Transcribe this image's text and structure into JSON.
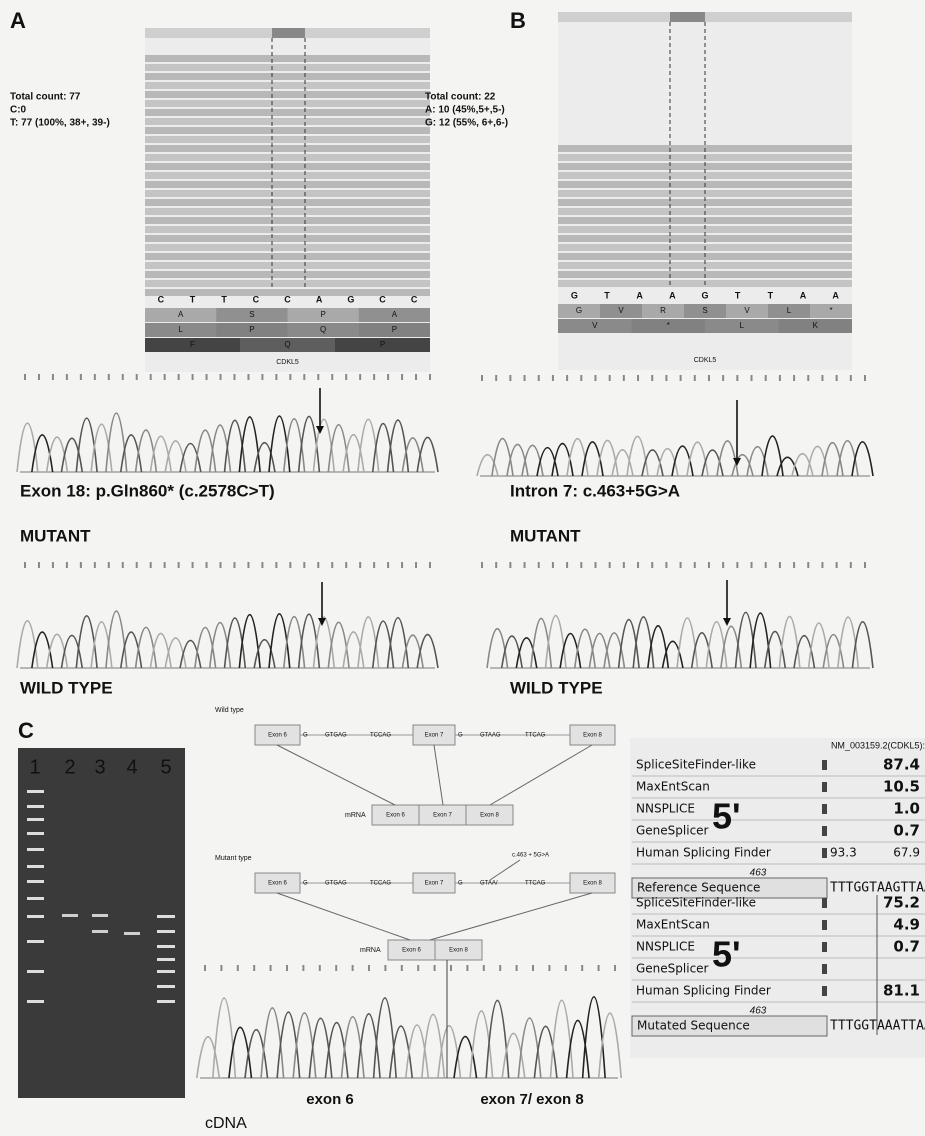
{
  "panel_a": {
    "label": "A",
    "count_lines": [
      "Total count: 77",
      "C:0",
      "T: 77 (100%, 38+, 39-)"
    ],
    "reference_bases": [
      "C",
      "T",
      "T",
      "C",
      "C",
      "A",
      "G",
      "C",
      "C"
    ],
    "protein_rows": [
      [
        "A",
        "S",
        "P",
        "A"
      ],
      [
        "L",
        "P",
        "Q",
        "P"
      ],
      [
        "F",
        "Q",
        "P"
      ]
    ],
    "gene": "CDKL5",
    "variant": "Exon 18: p.Gln860* (c.2578C>T)",
    "mutant_label": "MUTANT",
    "wildtype_label": "WILD TYPE"
  },
  "panel_b": {
    "label": "B",
    "count_lines": [
      "Total count: 22",
      "A: 10 (45%,5+,5-)",
      "G: 12 (55%, 6+,6-)"
    ],
    "reference_bases": [
      "G",
      "T",
      "A",
      "A",
      "G",
      "T",
      "T",
      "A",
      "A"
    ],
    "protein_rows": [
      [
        "G",
        "V",
        "R",
        "S",
        "V",
        "L",
        "*"
      ],
      [
        "V",
        "*",
        "L",
        "K"
      ]
    ],
    "gene": "CDKL5",
    "variant": "Intron 7: c.463+5G>A",
    "mutant_label": "MUTANT",
    "wildtype_label": "WILD TYPE"
  },
  "panel_c": {
    "label": "C",
    "gel_lanes": [
      "1",
      "2",
      "3",
      "4",
      "5"
    ],
    "wild_type": {
      "title": "Wild type",
      "gene_row": [
        "Exon 6",
        "G",
        "GTGAG",
        "TCCAG",
        "Exon 7",
        "G",
        "GTAAG",
        "TTCAG",
        "Exon 8"
      ],
      "mrna_label": "mRNA",
      "mrna_exons": [
        "Exon 6",
        "Exon 7",
        "Exon 8"
      ]
    },
    "mutant_type": {
      "title": "Mutant type",
      "mutation": "c.463 + 5G>A",
      "gene_row": [
        "Exon 6",
        "G",
        "GTGAG",
        "TCCAG",
        "Exon 7",
        "G",
        "GTAA/",
        "TTCAG",
        "Exon 8"
      ],
      "mrna_label": "mRNA",
      "mrna_exons": [
        "Exon 6",
        "Exon 8"
      ]
    },
    "cdna_left": "exon 6",
    "cdna_right": "exon 7/ exon 8",
    "cdna_label": "cDNA",
    "splice_table": {
      "header": "NM_003159.2(CDKL5):",
      "reference": {
        "rows": [
          {
            "name": "SpliceSiteFinder-like",
            "score": "87.4"
          },
          {
            "name": "MaxEntScan",
            "score": "10.5"
          },
          {
            "name": "NNSPLICE",
            "score": "1.0"
          },
          {
            "name": "GeneSplicer",
            "score": "0.7"
          },
          {
            "name": "Human Splicing Finder",
            "extra": "93.3",
            "score": "67.9"
          }
        ],
        "big_label": "5'",
        "position": "463",
        "sequence_label": "Reference Sequence",
        "sequence": "TTTGGTAAGTTAA"
      },
      "mutated": {
        "rows": [
          {
            "name": "SpliceSiteFinder-like",
            "score": "75.2"
          },
          {
            "name": "MaxEntScan",
            "score": "4.9"
          },
          {
            "name": "NNSPLICE",
            "score": "0.7"
          },
          {
            "name": "GeneSplicer"
          },
          {
            "name": "Human Splicing Finder",
            "score": "81.1"
          }
        ],
        "big_label": "5'",
        "position": "463",
        "sequence_label": "Mutated Sequence",
        "sequence": "TTTGGTAAATTAA"
      }
    }
  }
}
